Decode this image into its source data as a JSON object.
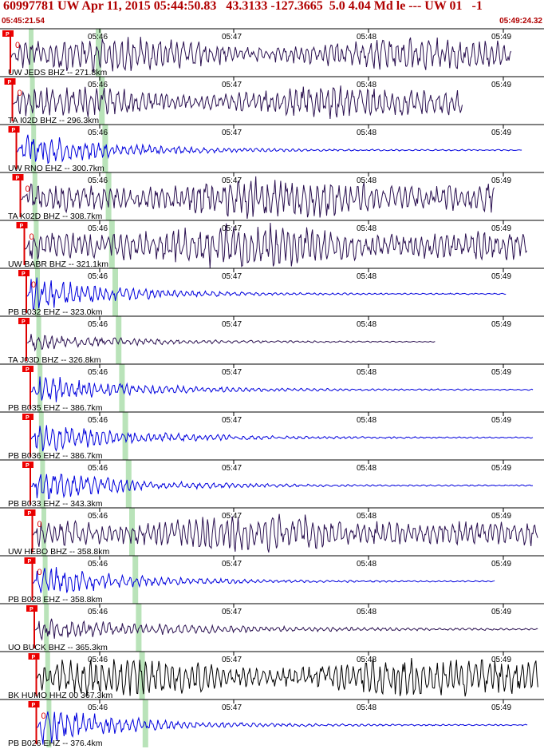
{
  "header": {
    "title": "60997781 UW Apr 11, 2015 05:44:50.83   43.3133 -127.3665  5.0 4.04 Md le --- UW 01   -1",
    "start_time": "05:45:21.54",
    "end_time": "05:49:24.32"
  },
  "colors": {
    "trace_blue": "#0000dd",
    "trace_purple": "#2a1050",
    "trace_black": "#000000",
    "pick_red": "#dd0000",
    "window_green": "#a8dca8",
    "tag_red": "#ee0000"
  },
  "time_axis": {
    "labels": [
      "05:46",
      "05:47",
      "05:48",
      "05:49"
    ]
  },
  "traces": [
    {
      "label": "UW JEDS BHZ -- 271.8km",
      "color": "purple",
      "p_tag": "P",
      "pick_label": "0",
      "end": 0.94,
      "amp": 0.8,
      "decay": 0.0,
      "ptime": 0.01
    },
    {
      "label": "TA I02D BHZ -- 296.3km",
      "color": "purple",
      "p_tag": "P",
      "pick_label": "0",
      "end": 0.85,
      "amp": 0.75,
      "decay": 0.0,
      "ptime": 0.015
    },
    {
      "label": "UW RNO EHZ -- 300.7km",
      "color": "blue",
      "p_tag": "P",
      "pick_label": "",
      "end": 0.96,
      "amp": 0.9,
      "decay": 0.95,
      "ptime": 0.025
    },
    {
      "label": "TA K02D BHZ -- 308.7km",
      "color": "purple",
      "p_tag": "P",
      "pick_label": "0",
      "end": 0.91,
      "amp": 0.85,
      "decay": 0.0,
      "ptime": 0.035
    },
    {
      "label": "UW BABR BHZ -- 321.1km",
      "color": "purple",
      "p_tag": "P",
      "pick_label": "0",
      "end": 0.97,
      "amp": 0.9,
      "decay": 0.0,
      "ptime": 0.045
    },
    {
      "label": "PB B032 EHZ -- 323.0km",
      "color": "blue",
      "p_tag": "P",
      "pick_label": "0",
      "end": 0.93,
      "amp": 0.9,
      "decay": 0.97,
      "ptime": 0.05
    },
    {
      "label": "TA J03D BHZ -- 326.8km",
      "color": "purple",
      "p_tag": "P",
      "pick_label": "",
      "end": 0.8,
      "amp": 0.4,
      "decay": 0.6,
      "ptime": 0.05
    },
    {
      "label": "PB B035 EHZ -- 386.7km",
      "color": "blue",
      "p_tag": "P",
      "pick_label": "",
      "end": 0.98,
      "amp": 0.75,
      "decay": 0.85,
      "ptime": 0.06
    },
    {
      "label": "PB B036 EHZ -- 386.7km",
      "color": "blue",
      "p_tag": "P",
      "pick_label": "",
      "end": 0.98,
      "amp": 0.75,
      "decay": 0.85,
      "ptime": 0.06
    },
    {
      "label": "PB B033 EHZ -- 343.3km",
      "color": "blue",
      "p_tag": "P",
      "pick_label": "",
      "end": 0.98,
      "amp": 0.8,
      "decay": 0.9,
      "ptime": 0.06
    },
    {
      "label": "UW HEBO BHZ -- 358.8km",
      "color": "purple",
      "p_tag": "P",
      "pick_label": "0",
      "end": 0.99,
      "amp": 0.75,
      "decay": 0.0,
      "ptime": 0.065
    },
    {
      "label": "PB B028 EHZ -- 358.8km",
      "color": "blue",
      "p_tag": "P",
      "pick_label": "0",
      "end": 0.91,
      "amp": 0.85,
      "decay": 0.9,
      "ptime": 0.065
    },
    {
      "label": "UO BUCK BHZ -- 365.3km",
      "color": "purple",
      "p_tag": "P",
      "pick_label": "",
      "end": 0.99,
      "amp": 0.5,
      "decay": 0.5,
      "ptime": 0.07
    },
    {
      "label": "BK HUMO HHZ 00 367.3km",
      "color": "black",
      "p_tag": "P",
      "pick_label": "",
      "end": 0.99,
      "amp": 0.9,
      "decay": 0.0,
      "ptime": 0.075
    },
    {
      "label": "PB B026 EHZ -- 376.4km",
      "color": "blue",
      "p_tag": "P",
      "pick_label": "0",
      "end": 0.97,
      "amp": 0.95,
      "decay": 0.95,
      "ptime": 0.075
    }
  ]
}
